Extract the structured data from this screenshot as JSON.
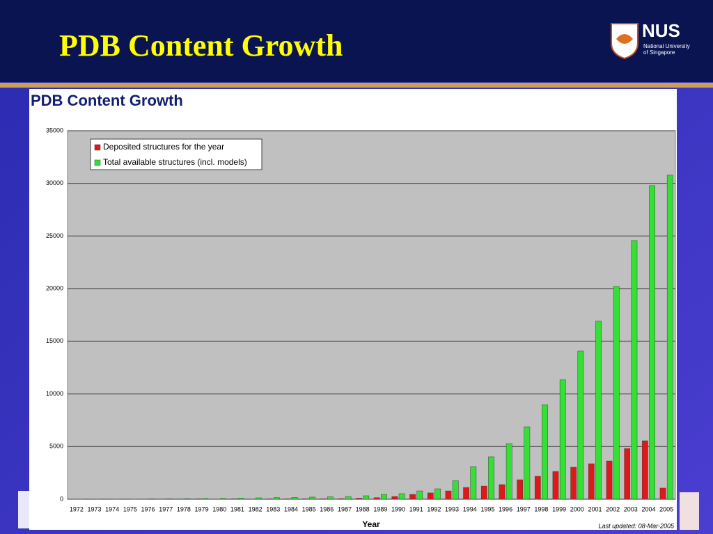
{
  "slide": {
    "title": "PDB Content Growth",
    "logo": {
      "name": "NUS",
      "line1": "National University",
      "line2": "of Singapore"
    }
  },
  "chart_data": {
    "type": "bar",
    "title": "PDB Content Growth",
    "x_label": "Year",
    "annotation": "Last updated: 08-Mar-2005",
    "categories": [
      "1972",
      "1973",
      "1974",
      "1975",
      "1976",
      "1977",
      "1978",
      "1979",
      "1980",
      "1981",
      "1982",
      "1983",
      "1984",
      "1985",
      "1986",
      "1987",
      "1988",
      "1989",
      "1990",
      "1991",
      "1992",
      "1993",
      "1994",
      "1995",
      "1996",
      "1997",
      "1998",
      "1999",
      "2000",
      "2001",
      "2002",
      "2003",
      "2004",
      "2005"
    ],
    "series": [
      {
        "name": "Deposited structures for the year",
        "color": "#e01818",
        "values": [
          1,
          0,
          0,
          0,
          20,
          25,
          30,
          40,
          20,
          40,
          20,
          40,
          40,
          40,
          40,
          60,
          100,
          150,
          260,
          460,
          600,
          790,
          1120,
          1250,
          1390,
          1850,
          2180,
          2640,
          3040,
          3370,
          3630,
          4820,
          5550,
          1060
        ]
      },
      {
        "name": "Total available structures (incl. models)",
        "color": "#33e033",
        "values": [
          7,
          10,
          12,
          15,
          40,
          50,
          60,
          70,
          90,
          110,
          130,
          150,
          170,
          200,
          230,
          260,
          330,
          460,
          530,
          790,
          990,
          1780,
          3100,
          4030,
          5280,
          6870,
          8980,
          11360,
          14070,
          16910,
          20210,
          24570,
          29790,
          30780
        ]
      }
    ],
    "ylim": [
      0,
      35000
    ],
    "yticks": [
      0,
      5000,
      10000,
      15000,
      20000,
      25000,
      30000,
      35000
    ],
    "grid": true,
    "legend": "upper left"
  }
}
